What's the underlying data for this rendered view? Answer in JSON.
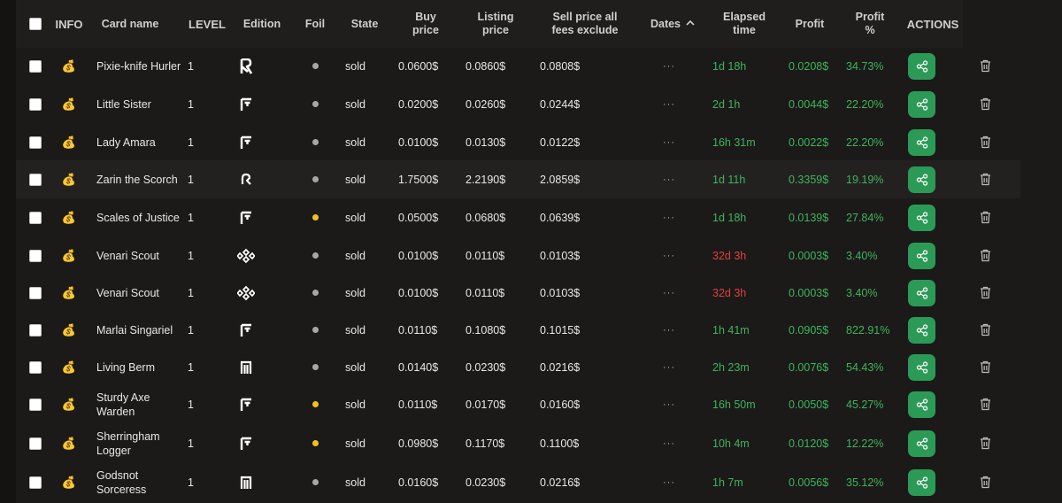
{
  "colors": {
    "accent_green": "#2c9a57",
    "positive": "#3fb45b",
    "negative": "#e0413b",
    "foil_gold": "#f2c21c",
    "foil_regular": "#a7a7aa"
  },
  "headers": {
    "info": "INFO",
    "card_name": "Card name",
    "level": "LEVEL",
    "edition": "Edition",
    "foil": "Foil",
    "state": "State",
    "buy_price": "Buy price",
    "listing_price": "Listing price",
    "sell_price": "Sell price all fees exclude",
    "dates": "Dates",
    "elapsed": "Elapsed time",
    "profit": "Profit",
    "profit_pct": "Profit %",
    "actions": "ACTIONS"
  },
  "icons": {
    "info": "money-bag-icon",
    "sort": "chevron-up-icon",
    "share": "share-icon",
    "delete": "trash-icon"
  },
  "rows": [
    {
      "name": "Pixie-knife Hurler",
      "level": "1",
      "edition": "edition-r-icon",
      "foil": "regular",
      "state": "sold",
      "buy": "0.0600$",
      "listing": "0.0860$",
      "sell": "0.0808$",
      "dates": "···",
      "elapsed": "1d 18h",
      "elapsed_status": "ok",
      "profit": "0.0208$",
      "profit_pct": "34.73%"
    },
    {
      "name": "Little Sister",
      "level": "1",
      "edition": "edition-f-icon",
      "foil": "regular",
      "state": "sold",
      "buy": "0.0200$",
      "listing": "0.0260$",
      "sell": "0.0244$",
      "dates": "···",
      "elapsed": "2d 1h",
      "elapsed_status": "ok",
      "profit": "0.0044$",
      "profit_pct": "22.20%"
    },
    {
      "name": "Lady Amara",
      "level": "1",
      "edition": "edition-f-icon",
      "foil": "regular",
      "state": "sold",
      "buy": "0.0100$",
      "listing": "0.0130$",
      "sell": "0.0122$",
      "dates": "···",
      "elapsed": "16h 31m",
      "elapsed_status": "ok",
      "profit": "0.0022$",
      "profit_pct": "22.20%"
    },
    {
      "name": "Zarin the Scorch",
      "level": "1",
      "edition": "edition-hook-icon",
      "foil": "regular",
      "state": "sold",
      "buy": "1.7500$",
      "listing": "2.2190$",
      "sell": "2.0859$",
      "dates": "···",
      "elapsed": "1d 11h",
      "elapsed_status": "ok",
      "profit": "0.3359$",
      "profit_pct": "19.19%"
    },
    {
      "name": "Scales of Justice",
      "level": "1",
      "edition": "edition-f-icon",
      "foil": "gold",
      "state": "sold",
      "buy": "0.0500$",
      "listing": "0.0680$",
      "sell": "0.0639$",
      "dates": "···",
      "elapsed": "1d 18h",
      "elapsed_status": "ok",
      "profit": "0.0139$",
      "profit_pct": "27.84%"
    },
    {
      "name": "Venari Scout",
      "level": "1",
      "edition": "edition-diamond-icon",
      "foil": "regular",
      "state": "sold",
      "buy": "0.0100$",
      "listing": "0.0110$",
      "sell": "0.0103$",
      "dates": "···",
      "elapsed": "32d 3h",
      "elapsed_status": "late",
      "profit": "0.0003$",
      "profit_pct": "3.40%"
    },
    {
      "name": "Venari Scout",
      "level": "1",
      "edition": "edition-diamond-icon",
      "foil": "regular",
      "state": "sold",
      "buy": "0.0100$",
      "listing": "0.0110$",
      "sell": "0.0103$",
      "dates": "···",
      "elapsed": "32d 3h",
      "elapsed_status": "late",
      "profit": "0.0003$",
      "profit_pct": "3.40%"
    },
    {
      "name": "Marlai Singariel",
      "level": "1",
      "edition": "edition-f-icon",
      "foil": "regular",
      "state": "sold",
      "buy": "0.0110$",
      "listing": "0.1080$",
      "sell": "0.1015$",
      "dates": "···",
      "elapsed": "1h 41m",
      "elapsed_status": "ok",
      "profit": "0.0905$",
      "profit_pct": "822.91%"
    },
    {
      "name": "Living Berm",
      "level": "1",
      "edition": "edition-n-icon",
      "foil": "regular",
      "state": "sold",
      "buy": "0.0140$",
      "listing": "0.0230$",
      "sell": "0.0216$",
      "dates": "···",
      "elapsed": "2h 23m",
      "elapsed_status": "ok",
      "profit": "0.0076$",
      "profit_pct": "54.43%"
    },
    {
      "name": "Sturdy Axe Warden",
      "level": "1",
      "edition": "edition-f-icon",
      "foil": "gold",
      "state": "sold",
      "buy": "0.0110$",
      "listing": "0.0170$",
      "sell": "0.0160$",
      "dates": "···",
      "elapsed": "16h 50m",
      "elapsed_status": "ok",
      "profit": "0.0050$",
      "profit_pct": "45.27%"
    },
    {
      "name": "Sherringham Logger",
      "level": "1",
      "edition": "edition-f-icon",
      "foil": "gold",
      "state": "sold",
      "buy": "0.0980$",
      "listing": "0.1170$",
      "sell": "0.1100$",
      "dates": "···",
      "elapsed": "10h 4m",
      "elapsed_status": "ok",
      "profit": "0.0120$",
      "profit_pct": "12.22%"
    },
    {
      "name": "Godsnot Sorceress",
      "level": "1",
      "edition": "edition-n-icon",
      "foil": "regular",
      "state": "sold",
      "buy": "0.0160$",
      "listing": "0.0230$",
      "sell": "0.0216$",
      "dates": "···",
      "elapsed": "1h 7m",
      "elapsed_status": "ok",
      "profit": "0.0056$",
      "profit_pct": "35.12%"
    }
  ]
}
